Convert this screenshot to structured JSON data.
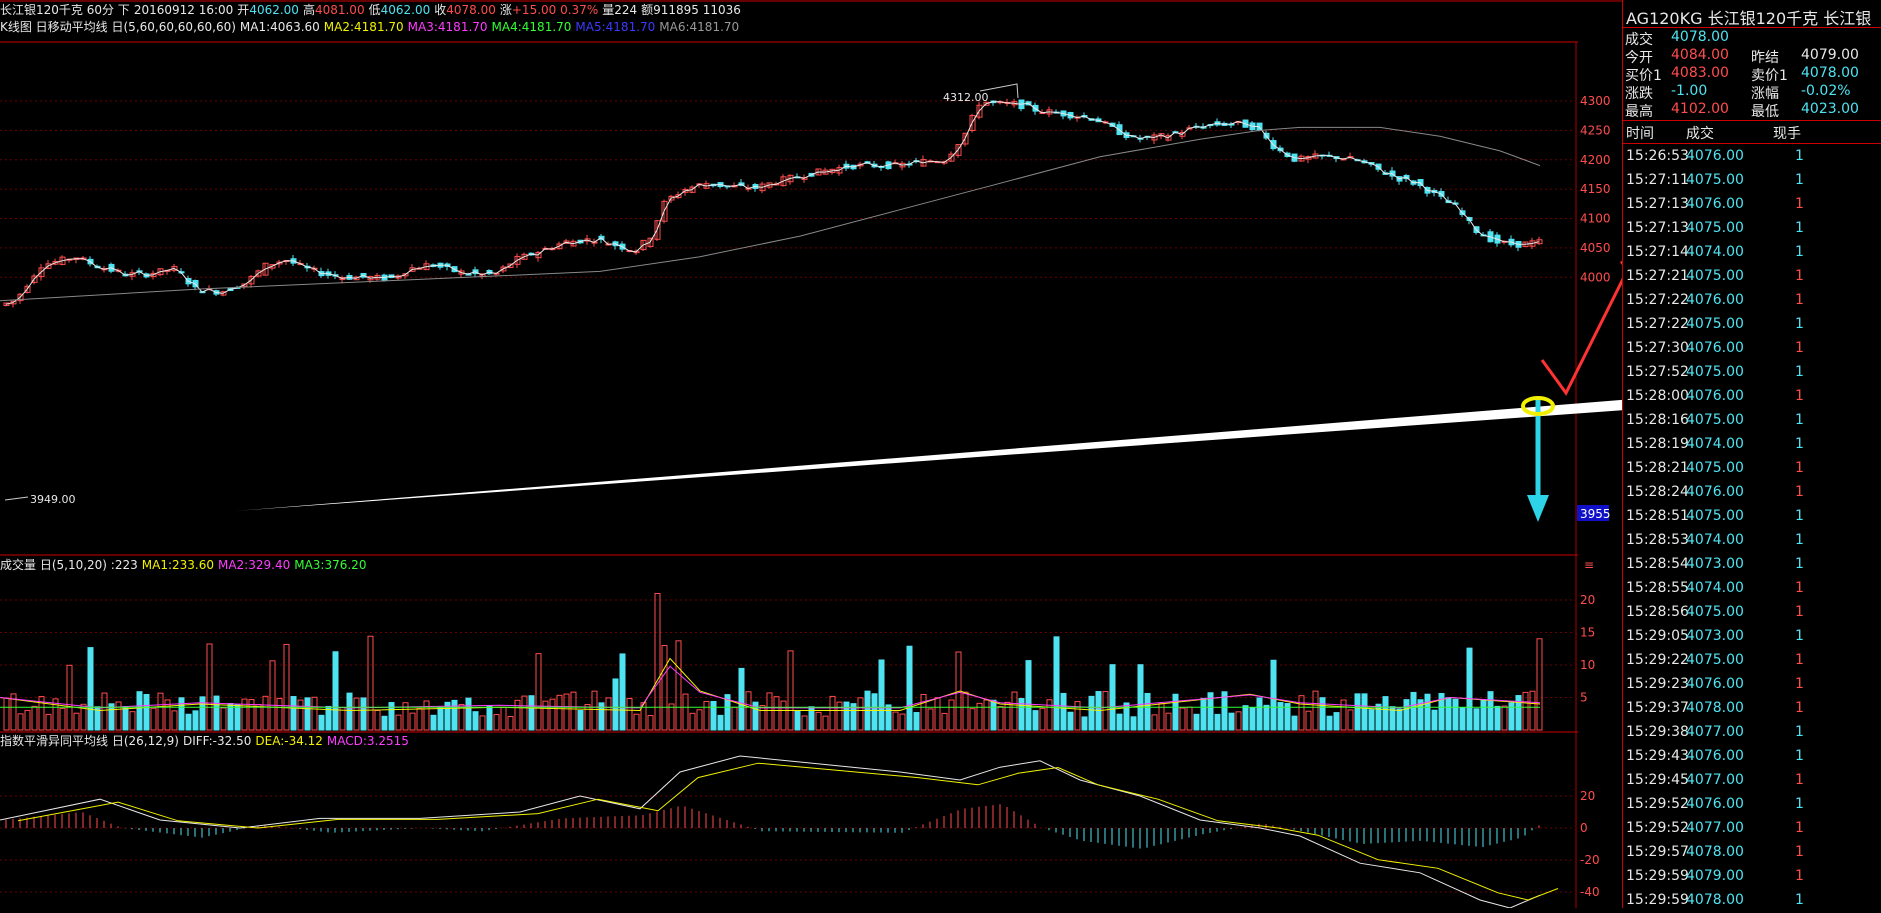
{
  "header": {
    "instrument": "长江银120千克 60分 下",
    "datetime": "20160912 16:00",
    "open_label": "开",
    "open": "4062.00",
    "high_label": "高",
    "high": "4081.00",
    "low_label": "低",
    "low": "4062.00",
    "close_label": "收",
    "close": "4078.00",
    "change_label": "涨",
    "change": "+15.00 0.37%",
    "volume": "量224",
    "amount": "额911895 11036"
  },
  "ma_line": {
    "label": "K线图 日移动平均线 日(5,60,60,60,60,60)",
    "ma1": "MA1:4063.60",
    "ma2": "MA2:4181.70",
    "ma3": "MA3:4181.70",
    "ma4": "MA4:4181.70",
    "ma5": "MA5:4181.70",
    "ma6": "MA6:4181.70"
  },
  "vol_line": {
    "label": "成交量 日(5,10,20) :223",
    "ma1": "MA1:233.60",
    "ma2": "MA2:329.40",
    "ma3": "MA3:376.20"
  },
  "macd_line": {
    "label": "指数平滑异同平均线 日(26,12,9)",
    "diff": "DIFF:-32.50",
    "dea": "DEA:-34.12",
    "macd": "MACD:3.2515"
  },
  "price_axis": [
    "4300",
    "4250",
    "4200",
    "4150",
    "4100",
    "4050",
    "4000"
  ],
  "price_tag": "3955",
  "vol_axis": [
    "20",
    "15",
    "10",
    "5"
  ],
  "macd_axis": [
    "20",
    "0",
    "-20",
    "-40"
  ],
  "annotations": {
    "high_mark": "4312.00",
    "low_mark": "3949.00"
  },
  "side": {
    "title": "AG120KG  长江银120千克   长江银",
    "rows": [
      {
        "l1": "成交",
        "v1": "4078.00",
        "c1": "cyan"
      },
      {
        "l1": "今开",
        "v1": "4084.00",
        "c1": "red",
        "l2": "昨结",
        "v2": "4079.00",
        "c2": "white"
      },
      {
        "l1": "买价1",
        "v1": "4083.00",
        "c1": "red",
        "l2": "卖价1",
        "v2": "4078.00",
        "c2": "cyan"
      },
      {
        "l1": "涨跌",
        "v1": "-1.00",
        "c1": "cyan",
        "l2": "涨幅",
        "v2": "-0.02%",
        "c2": "cyan"
      },
      {
        "l1": "最高",
        "v1": "4102.00",
        "c1": "red",
        "l2": "最低",
        "v2": "4023.00",
        "c2": "cyan"
      }
    ],
    "trade_header": {
      "time": "时间",
      "price": "成交",
      "qty": "现手"
    },
    "trades": [
      {
        "t": "15:26:53",
        "p": "4076.00",
        "q": "1",
        "c": "cyan"
      },
      {
        "t": "15:27:11",
        "p": "4075.00",
        "q": "1",
        "c": "cyan"
      },
      {
        "t": "15:27:13",
        "p": "4076.00",
        "q": "1",
        "c": "red"
      },
      {
        "t": "15:27:13",
        "p": "4075.00",
        "q": "1",
        "c": "cyan"
      },
      {
        "t": "15:27:14",
        "p": "4074.00",
        "q": "1",
        "c": "cyan"
      },
      {
        "t": "15:27:21",
        "p": "4075.00",
        "q": "1",
        "c": "red"
      },
      {
        "t": "15:27:22",
        "p": "4076.00",
        "q": "1",
        "c": "red"
      },
      {
        "t": "15:27:22",
        "p": "4075.00",
        "q": "1",
        "c": "cyan"
      },
      {
        "t": "15:27:30",
        "p": "4076.00",
        "q": "1",
        "c": "red"
      },
      {
        "t": "15:27:52",
        "p": "4075.00",
        "q": "1",
        "c": "cyan"
      },
      {
        "t": "15:28:00",
        "p": "4076.00",
        "q": "1",
        "c": "red"
      },
      {
        "t": "15:28:16",
        "p": "4075.00",
        "q": "1",
        "c": "cyan"
      },
      {
        "t": "15:28:19",
        "p": "4074.00",
        "q": "1",
        "c": "cyan"
      },
      {
        "t": "15:28:21",
        "p": "4075.00",
        "q": "1",
        "c": "red"
      },
      {
        "t": "15:28:24",
        "p": "4076.00",
        "q": "1",
        "c": "red"
      },
      {
        "t": "15:28:51",
        "p": "4075.00",
        "q": "1",
        "c": "cyan"
      },
      {
        "t": "15:28:53",
        "p": "4074.00",
        "q": "1",
        "c": "cyan"
      },
      {
        "t": "15:28:54",
        "p": "4073.00",
        "q": "1",
        "c": "cyan"
      },
      {
        "t": "15:28:55",
        "p": "4074.00",
        "q": "1",
        "c": "red"
      },
      {
        "t": "15:28:56",
        "p": "4075.00",
        "q": "1",
        "c": "red"
      },
      {
        "t": "15:29:05",
        "p": "4073.00",
        "q": "1",
        "c": "cyan"
      },
      {
        "t": "15:29:22",
        "p": "4075.00",
        "q": "1",
        "c": "red"
      },
      {
        "t": "15:29:23",
        "p": "4076.00",
        "q": "1",
        "c": "red"
      },
      {
        "t": "15:29:37",
        "p": "4078.00",
        "q": "1",
        "c": "red"
      },
      {
        "t": "15:29:38",
        "p": "4077.00",
        "q": "1",
        "c": "cyan"
      },
      {
        "t": "15:29:43",
        "p": "4076.00",
        "q": "1",
        "c": "cyan"
      },
      {
        "t": "15:29:45",
        "p": "4077.00",
        "q": "1",
        "c": "red"
      },
      {
        "t": "15:29:52",
        "p": "4076.00",
        "q": "1",
        "c": "cyan"
      },
      {
        "t": "15:29:52",
        "p": "4077.00",
        "q": "1",
        "c": "red"
      },
      {
        "t": "15:29:57",
        "p": "4078.00",
        "q": "1",
        "c": "red"
      },
      {
        "t": "15:29:59",
        "p": "4079.00",
        "q": "1",
        "c": "red"
      },
      {
        "t": "15:29:59",
        "p": "4078.00",
        "q": "1",
        "c": "cyan"
      }
    ]
  },
  "colors": {
    "up": "#ff4d4d",
    "down": "#4fe3f2",
    "grid": "#6a0000",
    "axis": "#b00000"
  }
}
